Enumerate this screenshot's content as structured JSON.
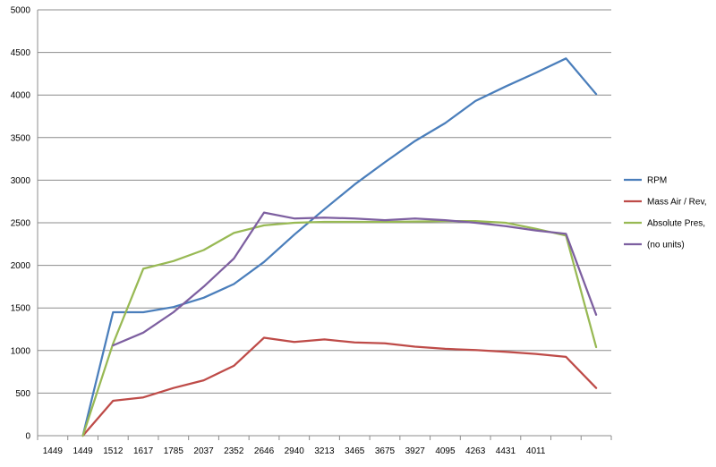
{
  "chart_data": {
    "type": "line",
    "title": "",
    "xlabel": "",
    "ylabel": "",
    "categories": [
      "1449",
      "1449",
      "1512",
      "1617",
      "1785",
      "2037",
      "2352",
      "2646",
      "2940",
      "3213",
      "3465",
      "3675",
      "3927",
      "4095",
      "4263",
      "4431",
      "4011",
      "",
      ""
    ],
    "ylim": [
      0,
      5000
    ],
    "yticks": [
      0,
      500,
      1000,
      1500,
      2000,
      2500,
      3000,
      3500,
      4000,
      4500,
      5000
    ],
    "grid": "horizontal",
    "legend_position": "right",
    "series": [
      {
        "name": "RPM",
        "color": "#4a7ebb",
        "values": [
          null,
          0,
          1450,
          1450,
          1510,
          1620,
          1780,
          2040,
          2360,
          2660,
          2950,
          3210,
          3460,
          3670,
          3930,
          4100,
          4260,
          4430,
          4010
        ]
      },
      {
        "name": "Mass Air / Rev,",
        "color": "#be4b48",
        "values": [
          null,
          0,
          410,
          450,
          560,
          650,
          820,
          1150,
          1100,
          1130,
          1095,
          1085,
          1045,
          1020,
          1005,
          985,
          960,
          925,
          560
        ]
      },
      {
        "name": "Absolute Pres,",
        "color": "#98b954",
        "values": [
          null,
          0,
          1080,
          1960,
          2050,
          2180,
          2380,
          2470,
          2500,
          2510,
          2510,
          2510,
          2515,
          2520,
          2520,
          2500,
          2430,
          2350,
          1040
        ]
      },
      {
        "name": "(no units)",
        "color": "#7d5fa0",
        "values": [
          null,
          null,
          1060,
          1210,
          1450,
          1750,
          2080,
          2620,
          2550,
          2560,
          2550,
          2530,
          2550,
          2530,
          2500,
          2460,
          2410,
          2370,
          1420
        ]
      }
    ]
  }
}
